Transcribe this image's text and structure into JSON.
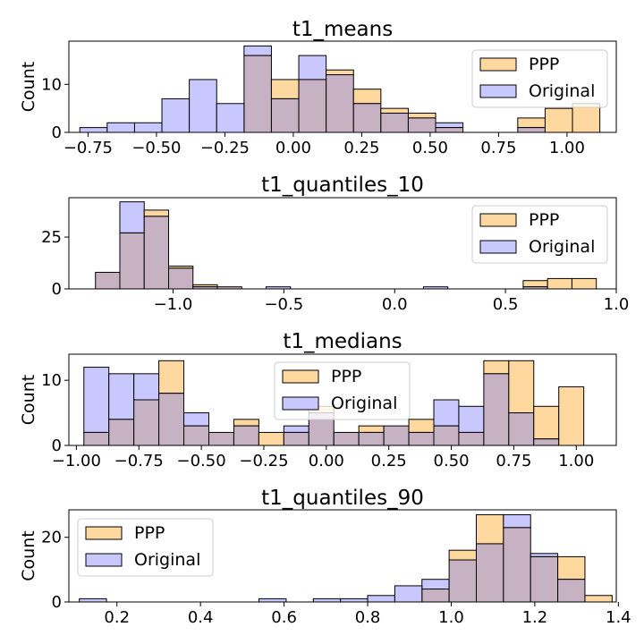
{
  "chart_data": [
    {
      "type": "histogram",
      "title": "t1_means",
      "ylabel": "Count",
      "xlim": [
        -0.82,
        1.18
      ],
      "ylim": [
        0,
        19
      ],
      "xticks": [
        -0.75,
        -0.5,
        -0.25,
        0.0,
        0.25,
        0.5,
        0.75,
        1.0
      ],
      "xtick_labels": [
        "−0.75",
        "−0.50",
        "−0.25",
        "0.00",
        "0.25",
        "0.50",
        "0.75",
        "1.00"
      ],
      "yticks": [
        0,
        10
      ],
      "legend": "upper right",
      "series": [
        {
          "name": "PPP",
          "color": "#ffd8a0",
          "bins": [
            [
              -0.18,
              -0.08,
              16
            ],
            [
              -0.08,
              0.02,
              11
            ],
            [
              0.02,
              0.12,
              11
            ],
            [
              0.12,
              0.22,
              13
            ],
            [
              0.22,
              0.32,
              9
            ],
            [
              0.32,
              0.42,
              5
            ],
            [
              0.42,
              0.52,
              4
            ],
            [
              0.52,
              0.62,
              1
            ],
            [
              0.82,
              0.92,
              3
            ],
            [
              0.92,
              1.02,
              5
            ],
            [
              1.02,
              1.12,
              6
            ]
          ]
        },
        {
          "name": "Original",
          "color": "#c8c8ff",
          "bins": [
            [
              -0.78,
              -0.68,
              1
            ],
            [
              -0.68,
              -0.58,
              2
            ],
            [
              -0.58,
              -0.48,
              2
            ],
            [
              -0.48,
              -0.38,
              7
            ],
            [
              -0.38,
              -0.28,
              11
            ],
            [
              -0.28,
              -0.18,
              6
            ],
            [
              -0.18,
              -0.08,
              18
            ],
            [
              -0.08,
              0.02,
              7
            ],
            [
              0.02,
              0.12,
              16
            ],
            [
              0.12,
              0.22,
              12
            ],
            [
              0.22,
              0.32,
              6
            ],
            [
              0.32,
              0.42,
              4
            ],
            [
              0.42,
              0.52,
              3
            ],
            [
              0.52,
              0.62,
              2
            ],
            [
              0.82,
              0.92,
              1
            ]
          ]
        }
      ]
    },
    {
      "type": "histogram",
      "title": "t1_quantiles_10",
      "ylabel": "",
      "xlim": [
        -1.47,
        1.0
      ],
      "ylim": [
        0,
        44
      ],
      "xticks": [
        -1.0,
        -0.5,
        0.0,
        0.5,
        1.0
      ],
      "xtick_labels": [
        "−1.0",
        "−0.5",
        "0.0",
        "0.5",
        "1.0"
      ],
      "yticks": [
        0,
        25
      ],
      "legend": "upper right",
      "series": [
        {
          "name": "PPP",
          "color": "#ffd8a0",
          "bins": [
            [
              -1.35,
              -1.24,
              8
            ],
            [
              -1.24,
              -1.13,
              27
            ],
            [
              -1.13,
              -1.02,
              38
            ],
            [
              -1.02,
              -0.91,
              11
            ],
            [
              -0.91,
              -0.8,
              2
            ],
            [
              -0.8,
              -0.69,
              1
            ],
            [
              0.58,
              0.69,
              4
            ],
            [
              0.69,
              0.8,
              5
            ],
            [
              0.8,
              0.91,
              5
            ]
          ]
        },
        {
          "name": "Original",
          "color": "#c8c8ff",
          "bins": [
            [
              -1.35,
              -1.24,
              8
            ],
            [
              -1.24,
              -1.13,
              42
            ],
            [
              -1.13,
              -1.02,
              35
            ],
            [
              -1.02,
              -0.91,
              10
            ],
            [
              -0.91,
              -0.8,
              1
            ],
            [
              -0.8,
              -0.69,
              1
            ],
            [
              -0.58,
              -0.47,
              1
            ],
            [
              0.13,
              0.24,
              1
            ],
            [
              0.58,
              0.69,
              1
            ]
          ]
        }
      ]
    },
    {
      "type": "histogram",
      "title": "t1_medians",
      "ylabel": "Count",
      "xlim": [
        -1.03,
        1.16
      ],
      "ylim": [
        0,
        14
      ],
      "xticks": [
        -1.0,
        -0.75,
        -0.5,
        -0.25,
        0.0,
        0.25,
        0.5,
        0.75,
        1.0
      ],
      "xtick_labels": [
        "−1.00",
        "−0.75",
        "−0.50",
        "−0.25",
        "0.00",
        "0.25",
        "0.50",
        "0.75",
        "1.00"
      ],
      "yticks": [
        0,
        10
      ],
      "legend": "upper center",
      "series": [
        {
          "name": "PPP",
          "color": "#ffd8a0",
          "bins": [
            [
              -0.97,
              -0.87,
              2
            ],
            [
              -0.87,
              -0.77,
              4
            ],
            [
              -0.77,
              -0.67,
              7
            ],
            [
              -0.67,
              -0.57,
              13
            ],
            [
              -0.57,
              -0.47,
              3
            ],
            [
              -0.47,
              -0.37,
              2
            ],
            [
              -0.37,
              -0.27,
              4
            ],
            [
              -0.27,
              -0.17,
              2
            ],
            [
              -0.17,
              -0.07,
              2
            ],
            [
              -0.07,
              0.03,
              6
            ],
            [
              0.03,
              0.13,
              2
            ],
            [
              0.13,
              0.23,
              3
            ],
            [
              0.23,
              0.33,
              3
            ],
            [
              0.33,
              0.43,
              4
            ],
            [
              0.43,
              0.53,
              3
            ],
            [
              0.53,
              0.63,
              2
            ],
            [
              0.63,
              0.73,
              13
            ],
            [
              0.73,
              0.83,
              13
            ],
            [
              0.83,
              0.93,
              6
            ],
            [
              0.93,
              1.03,
              9
            ]
          ]
        },
        {
          "name": "Original",
          "color": "#c8c8ff",
          "bins": [
            [
              -0.97,
              -0.87,
              12
            ],
            [
              -0.87,
              -0.77,
              11
            ],
            [
              -0.77,
              -0.67,
              11
            ],
            [
              -0.67,
              -0.57,
              8
            ],
            [
              -0.57,
              -0.47,
              5
            ],
            [
              -0.47,
              -0.37,
              2
            ],
            [
              -0.37,
              -0.27,
              3
            ],
            [
              -0.17,
              -0.07,
              3
            ],
            [
              -0.07,
              0.03,
              5
            ],
            [
              0.03,
              0.13,
              2
            ],
            [
              0.13,
              0.23,
              2
            ],
            [
              0.23,
              0.33,
              3
            ],
            [
              0.33,
              0.43,
              2
            ],
            [
              0.43,
              0.53,
              7
            ],
            [
              0.53,
              0.63,
              6
            ],
            [
              0.63,
              0.73,
              11
            ],
            [
              0.73,
              0.83,
              5
            ],
            [
              0.83,
              0.93,
              1
            ]
          ]
        }
      ]
    },
    {
      "type": "histogram",
      "title": "t1_quantiles_90",
      "ylabel": "Count",
      "xlim": [
        0.085,
        1.395
      ],
      "ylim": [
        0,
        28.5
      ],
      "xticks": [
        0.2,
        0.4,
        0.6,
        0.8,
        1.0,
        1.2,
        1.4
      ],
      "xtick_labels": [
        "0.2",
        "0.4",
        "0.6",
        "0.8",
        "1.0",
        "1.2",
        "1.4"
      ],
      "yticks": [
        0,
        20
      ],
      "legend": "upper left",
      "series": [
        {
          "name": "PPP",
          "color": "#ffd8a0",
          "bins": [
            [
              0.93,
              0.995,
              4
            ],
            [
              0.995,
              1.06,
              16
            ],
            [
              1.06,
              1.125,
              27
            ],
            [
              1.125,
              1.19,
              23
            ],
            [
              1.19,
              1.255,
              14
            ],
            [
              1.255,
              1.32,
              14
            ],
            [
              1.32,
              1.385,
              2
            ]
          ]
        },
        {
          "name": "Original",
          "color": "#c8c8ff",
          "bins": [
            [
              0.11,
              0.175,
              1
            ],
            [
              0.54,
              0.605,
              1
            ],
            [
              0.67,
              0.735,
              1
            ],
            [
              0.735,
              0.8,
              1
            ],
            [
              0.8,
              0.865,
              2
            ],
            [
              0.865,
              0.93,
              5
            ],
            [
              0.93,
              0.995,
              7
            ],
            [
              0.995,
              1.06,
              13
            ],
            [
              1.06,
              1.125,
              18
            ],
            [
              1.125,
              1.19,
              27
            ],
            [
              1.19,
              1.255,
              15
            ],
            [
              1.255,
              1.32,
              7
            ]
          ]
        }
      ]
    }
  ]
}
